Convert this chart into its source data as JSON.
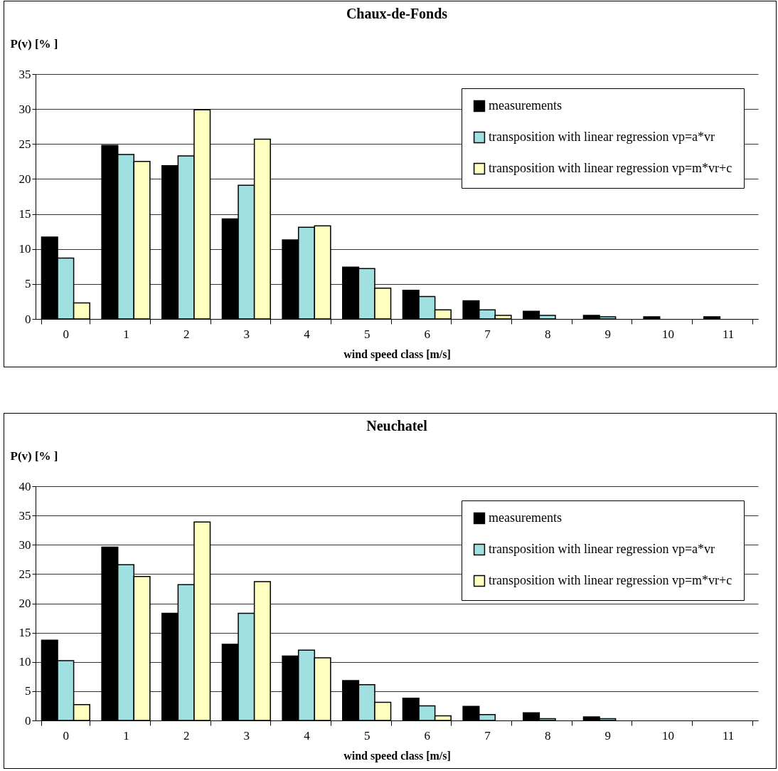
{
  "chart_data": [
    {
      "type": "bar",
      "title": "Chaux-de-Fonds",
      "xlabel": "wind speed class [m/s]",
      "ylabel": "P(v) [% ]",
      "categories": [
        "0",
        "1",
        "2",
        "3",
        "4",
        "5",
        "6",
        "7",
        "8",
        "9",
        "10",
        "11"
      ],
      "series": [
        {
          "name": "measurements",
          "color": "#000000",
          "values": [
            11.7,
            24.8,
            21.9,
            14.3,
            11.3,
            7.4,
            4.1,
            2.6,
            1.1,
            0.5,
            0.3,
            0.3
          ]
        },
        {
          "name": "transposition with linear regression vp=a*vr",
          "color": "#a0e0e0",
          "values": [
            8.7,
            23.5,
            23.3,
            19.1,
            13.1,
            7.2,
            3.2,
            1.3,
            0.5,
            0.3,
            null,
            null
          ]
        },
        {
          "name": "transposition with linear regression vp=m*vr+c",
          "color": "#ffffc0",
          "values": [
            2.3,
            22.5,
            29.9,
            25.7,
            13.3,
            4.4,
            1.3,
            0.5,
            null,
            null,
            null,
            null
          ]
        }
      ],
      "ylim": [
        0,
        35
      ],
      "yticks": [
        0,
        5,
        10,
        15,
        20,
        25,
        30,
        35
      ],
      "grid": "y",
      "legend": "top right"
    },
    {
      "type": "bar",
      "title": "Neuchatel",
      "xlabel": "wind speed class [m/s]",
      "ylabel": "P(v) [% ]",
      "categories": [
        "0",
        "1",
        "2",
        "3",
        "4",
        "5",
        "6",
        "7",
        "8",
        "9",
        "10",
        "11"
      ],
      "series": [
        {
          "name": "measurements",
          "color": "#000000",
          "values": [
            13.7,
            29.6,
            18.3,
            13.0,
            11.0,
            6.8,
            3.8,
            2.4,
            1.3,
            0.6,
            null,
            null
          ]
        },
        {
          "name": "transposition with linear regression vp=a*vr",
          "color": "#a0e0e0",
          "values": [
            10.2,
            26.6,
            23.2,
            18.3,
            12.0,
            6.1,
            2.5,
            1.0,
            0.3,
            0.3,
            null,
            null
          ]
        },
        {
          "name": "transposition with linear regression vp=m*vr+c",
          "color": "#ffffc0",
          "values": [
            2.7,
            24.6,
            33.9,
            23.7,
            10.7,
            3.1,
            0.8,
            null,
            null,
            null,
            null,
            null
          ]
        }
      ],
      "ylim": [
        0,
        40
      ],
      "yticks": [
        0,
        5,
        10,
        15,
        20,
        25,
        30,
        35,
        40
      ],
      "grid": "y",
      "legend": "top right"
    }
  ]
}
